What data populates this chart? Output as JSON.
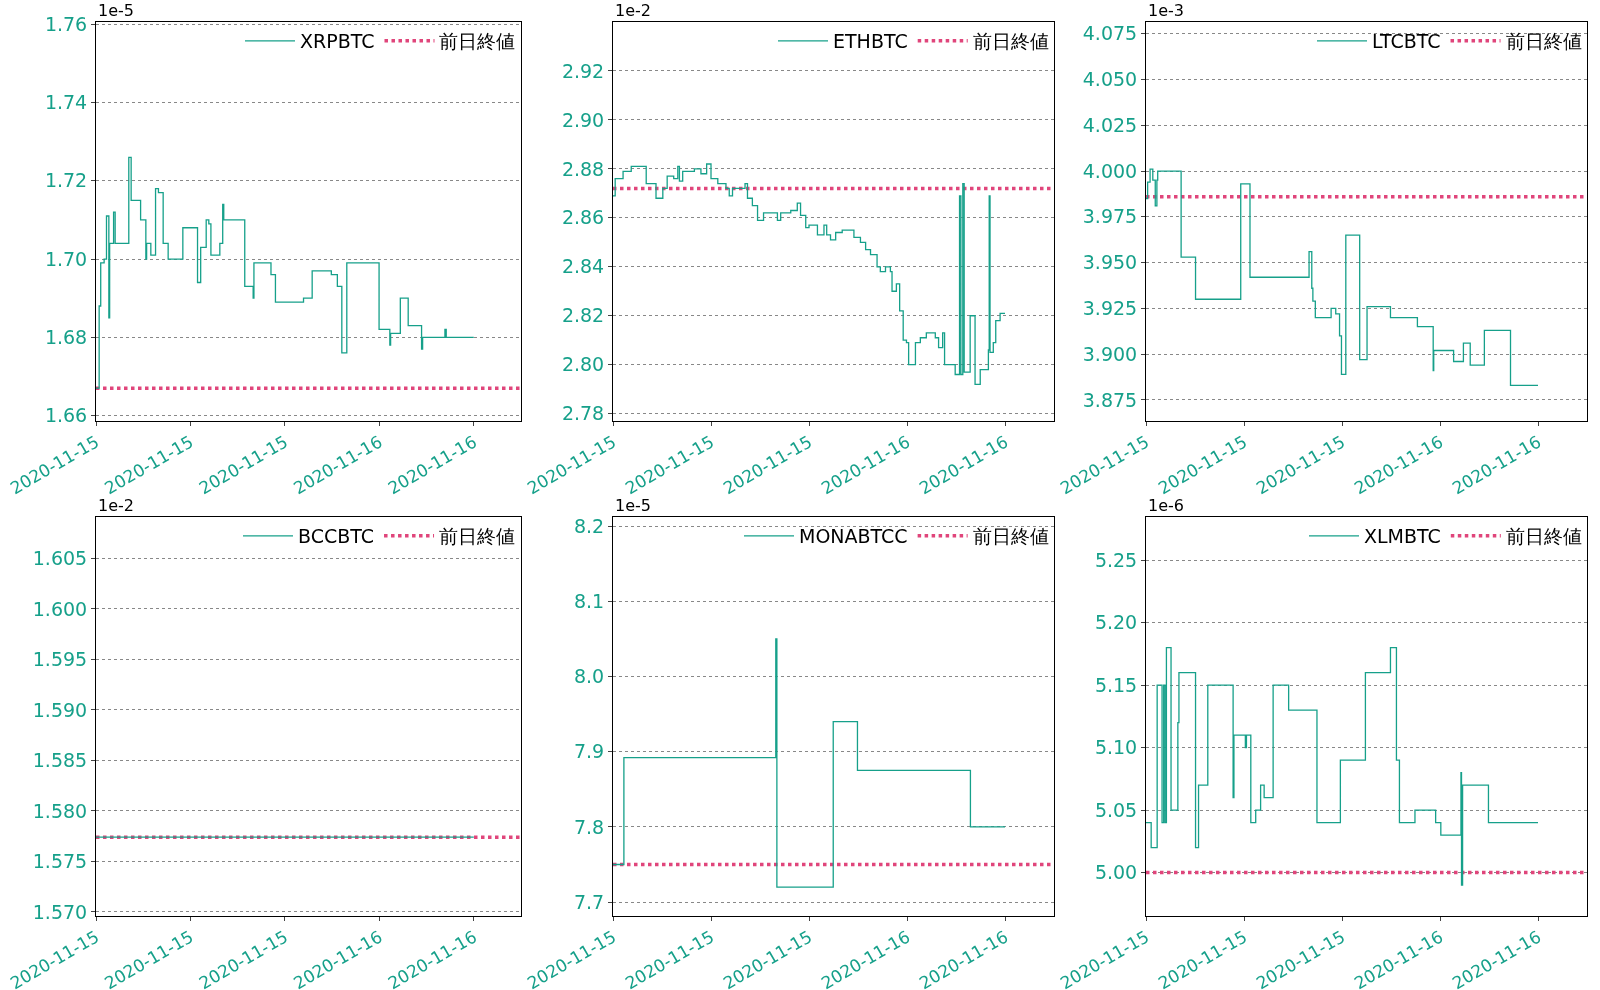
{
  "chart_data": [
    {
      "type": "step",
      "annotations": [
        "1e-5"
      ],
      "series": [
        {
          "name": "XRPBTC",
          "color": "#16a08a",
          "x": [
            "2020-11-15T06:00",
            "2020-11-15T06:12",
            "2020-11-15T06:18",
            "2020-11-15T06:31",
            "2020-11-15T06:40",
            "2020-11-15T06:49",
            "2020-11-15T06:52",
            "2020-11-15T07:07",
            "2020-11-15T07:13",
            "2020-11-15T08:05",
            "2020-11-15T08:14",
            "2020-11-15T08:26",
            "2020-11-15T08:50",
            "2020-11-15T09:10",
            "2020-11-15T09:13",
            "2020-11-15T09:29",
            "2020-11-15T09:47",
            "2020-11-15T09:58",
            "2020-11-15T10:16",
            "2020-11-15T10:35",
            "2020-11-15T11:31",
            "2020-11-15T12:27",
            "2020-11-15T12:39",
            "2020-11-15T13:00",
            "2020-11-15T13:10",
            "2020-11-15T13:18",
            "2020-11-15T13:52",
            "2020-11-15T14:03",
            "2020-11-15T14:07",
            "2020-11-15T15:27",
            "2020-11-15T15:59",
            "2020-11-15T16:02",
            "2020-11-15T17:07",
            "2020-11-15T17:24",
            "2020-11-15T19:11",
            "2020-11-15T19:44",
            "2020-11-15T20:57",
            "2020-11-15T21:20",
            "2020-11-15T21:37",
            "2020-11-15T21:56",
            "2020-11-15T23:59",
            "2020-11-16T00:40",
            "2020-11-16T00:43",
            "2020-11-16T01:20",
            "2020-11-16T01:50",
            "2020-11-16T02:41",
            "2020-11-16T02:45",
            "2020-11-16T04:10",
            "2020-11-16T04:15",
            "2020-11-16T06:00"
          ],
          "values": [
            1.667,
            1.688,
            1.699,
            1.7,
            1.711,
            1.685,
            1.704,
            1.712,
            1.704,
            1.726,
            1.715,
            1.715,
            1.71,
            1.7,
            1.704,
            1.701,
            1.718,
            1.717,
            1.704,
            1.7,
            1.708,
            1.694,
            1.703,
            1.71,
            1.709,
            1.701,
            1.704,
            1.714,
            1.71,
            1.693,
            1.69,
            1.699,
            1.696,
            1.689,
            1.69,
            1.697,
            1.696,
            1.693,
            1.676,
            1.699,
            1.682,
            1.678,
            1.681,
            1.69,
            1.683,
            1.677,
            1.68,
            1.682,
            1.68,
            1.68
          ]
        }
      ],
      "ref_lines": [
        {
          "axis": "y",
          "value": 1.667,
          "label": "前日終値",
          "color": "#e0457b",
          "line_style": "dotted"
        }
      ],
      "xlim": [
        "2020-11-15T06:00",
        "2020-11-16T09:00"
      ],
      "xticks": [
        {
          "value": "2020-11-15T06:00",
          "label": "2020-11-15"
        },
        {
          "value": "2020-11-15T12:00",
          "label": "2020-11-15"
        },
        {
          "value": "2020-11-15T18:00",
          "label": "2020-11-15"
        },
        {
          "value": "2020-11-16T00:00",
          "label": "2020-11-16"
        },
        {
          "value": "2020-11-16T06:00",
          "label": "2020-11-16"
        }
      ],
      "ylim": [
        1.6586,
        1.7606
      ],
      "yticks": [
        {
          "value": 1.66,
          "label": "1.66"
        },
        {
          "value": 1.68,
          "label": "1.68"
        },
        {
          "value": 1.7,
          "label": "1.70"
        },
        {
          "value": 1.72,
          "label": "1.72"
        },
        {
          "value": 1.74,
          "label": "1.74"
        },
        {
          "value": 1.76,
          "label": "1.76"
        }
      ],
      "grid": "y",
      "legend": "top right"
    },
    {
      "type": "step",
      "annotations": [
        "1e-2"
      ],
      "series": [
        {
          "name": "ETHBTC",
          "color": "#16a08a",
          "x": [
            "2020-11-15T06:00",
            "2020-11-15T06:08",
            "2020-11-15T06:37",
            "2020-11-15T07:07",
            "2020-11-15T08:02",
            "2020-11-15T08:38",
            "2020-11-15T09:03",
            "2020-11-15T09:19",
            "2020-11-15T09:43",
            "2020-11-15T09:58",
            "2020-11-15T10:04",
            "2020-11-15T10:16",
            "2020-11-15T10:59",
            "2020-11-15T11:23",
            "2020-11-15T11:44",
            "2020-11-15T12:00",
            "2020-11-15T12:25",
            "2020-11-15T12:55",
            "2020-11-15T13:07",
            "2020-11-15T13:19",
            "2020-11-15T14:05",
            "2020-11-15T14:14",
            "2020-11-15T14:32",
            "2020-11-15T14:51",
            "2020-11-15T15:13",
            "2020-11-15T16:04",
            "2020-11-15T16:16",
            "2020-11-15T16:53",
            "2020-11-15T17:17",
            "2020-11-15T17:29",
            "2020-11-15T17:48",
            "2020-11-15T18:00",
            "2020-11-15T18:31",
            "2020-11-15T18:55",
            "2020-11-15T19:05",
            "2020-11-15T19:19",
            "2020-11-15T19:38",
            "2020-11-15T20:02",
            "2020-11-15T20:45",
            "2020-11-15T21:09",
            "2020-11-15T21:28",
            "2020-11-15T21:46",
            "2020-11-15T22:10",
            "2020-11-15T22:22",
            "2020-11-15T22:41",
            "2020-11-15T22:59",
            "2020-11-15T23:05",
            "2020-11-15T23:21",
            "2020-11-15T23:33",
            "2020-11-15T23:46",
            "2020-11-15T23:58",
            "2020-11-16T00:06",
            "2020-11-16T00:31",
            "2020-11-16T00:49",
            "2020-11-16T01:11",
            "2020-11-16T01:44",
            "2020-11-16T01:56",
            "2020-11-16T02:11",
            "2020-11-16T02:18",
            "2020-11-16T02:57",
            "2020-11-16T03:13",
            "2020-11-16T03:18",
            "2020-11-16T03:25",
            "2020-11-16T03:30",
            "2020-11-16T03:52",
            "2020-11-16T04:10",
            "2020-11-16T04:29",
            "2020-11-16T04:59",
            "2020-11-16T05:02",
            "2020-11-16T05:05",
            "2020-11-16T05:17",
            "2020-11-16T05:26",
            "2020-11-16T05:42",
            "2020-11-16T06:00"
          ],
          "values": [
            2.869,
            2.876,
            2.879,
            2.881,
            2.874,
            2.868,
            2.872,
            2.877,
            2.876,
            2.881,
            2.875,
            2.879,
            2.88,
            2.878,
            2.882,
            2.876,
            2.874,
            2.872,
            2.869,
            2.872,
            2.874,
            2.868,
            2.865,
            2.859,
            2.862,
            2.859,
            2.862,
            2.863,
            2.866,
            2.861,
            2.856,
            2.857,
            2.853,
            2.857,
            2.853,
            2.851,
            2.854,
            2.855,
            2.852,
            2.85,
            2.847,
            2.845,
            2.84,
            2.838,
            2.84,
            2.838,
            2.83,
            2.833,
            2.822,
            2.81,
            2.809,
            2.8,
            2.809,
            2.811,
            2.813,
            2.811,
            2.807,
            2.813,
            2.8,
            2.796,
            2.869,
            2.796,
            2.874,
            2.797,
            2.82,
            2.792,
            2.798,
            2.806,
            2.869,
            2.805,
            2.809,
            2.818,
            2.821,
            2.821
          ]
        }
      ],
      "ref_lines": [
        {
          "axis": "y",
          "value": 2.872,
          "label": "前日終値",
          "color": "#e0457b",
          "line_style": "dotted"
        }
      ],
      "xlim": [
        "2020-11-15T06:00",
        "2020-11-16T09:00"
      ],
      "xticks": [
        {
          "value": "2020-11-15T06:00",
          "label": "2020-11-15"
        },
        {
          "value": "2020-11-15T12:00",
          "label": "2020-11-15"
        },
        {
          "value": "2020-11-15T18:00",
          "label": "2020-11-15"
        },
        {
          "value": "2020-11-16T00:00",
          "label": "2020-11-16"
        },
        {
          "value": "2020-11-16T06:00",
          "label": "2020-11-16"
        }
      ],
      "ylim": [
        2.777,
        2.94
      ],
      "yticks": [
        {
          "value": 2.78,
          "label": "2.78"
        },
        {
          "value": 2.8,
          "label": "2.80"
        },
        {
          "value": 2.82,
          "label": "2.82"
        },
        {
          "value": 2.84,
          "label": "2.84"
        },
        {
          "value": 2.86,
          "label": "2.86"
        },
        {
          "value": 2.88,
          "label": "2.88"
        },
        {
          "value": 2.9,
          "label": "2.90"
        },
        {
          "value": 2.92,
          "label": "2.92"
        }
      ],
      "grid": "y",
      "legend": "top right"
    },
    {
      "type": "step",
      "annotations": [
        "1e-3"
      ],
      "series": [
        {
          "name": "LTCBTC",
          "color": "#16a08a",
          "x": [
            "2020-11-15T06:00",
            "2020-11-15T06:06",
            "2020-11-15T06:15",
            "2020-11-15T06:25",
            "2020-11-15T06:34",
            "2020-11-15T06:40",
            "2020-11-15T06:43",
            "2020-11-15T08:09",
            "2020-11-15T09:02",
            "2020-11-15T11:48",
            "2020-11-15T12:22",
            "2020-11-15T15:59",
            "2020-11-15T16:09",
            "2020-11-15T16:13",
            "2020-11-15T16:22",
            "2020-11-15T17:20",
            "2020-11-15T17:37",
            "2020-11-15T17:51",
            "2020-11-15T17:58",
            "2020-11-15T18:14",
            "2020-11-15T19:05",
            "2020-11-15T19:32",
            "2020-11-15T20:58",
            "2020-11-15T22:37",
            "2020-11-15T23:35",
            "2020-11-15T23:37",
            "2020-11-16T00:50",
            "2020-11-16T01:26",
            "2020-11-16T01:51",
            "2020-11-16T02:43",
            "2020-11-16T04:19",
            "2020-11-16T06:00"
          ],
          "values": [
            3.985,
            3.994,
            4.001,
            3.995,
            3.981,
            3.995,
            4.0,
            3.953,
            3.93,
            3.993,
            3.942,
            3.956,
            3.936,
            3.929,
            3.92,
            3.925,
            3.922,
            3.91,
            3.889,
            3.965,
            3.897,
            3.926,
            3.92,
            3.915,
            3.891,
            3.902,
            3.896,
            3.906,
            3.894,
            3.913,
            3.883,
            3.883
          ]
        }
      ],
      "ref_lines": [
        {
          "axis": "y",
          "value": 3.986,
          "label": "前日終値",
          "color": "#e0457b",
          "line_style": "dotted"
        }
      ],
      "xlim": [
        "2020-11-15T06:00",
        "2020-11-16T09:00"
      ],
      "xticks": [
        {
          "value": "2020-11-15T06:00",
          "label": "2020-11-15"
        },
        {
          "value": "2020-11-15T12:00",
          "label": "2020-11-15"
        },
        {
          "value": "2020-11-15T18:00",
          "label": "2020-11-15"
        },
        {
          "value": "2020-11-16T00:00",
          "label": "2020-11-16"
        },
        {
          "value": "2020-11-16T06:00",
          "label": "2020-11-16"
        }
      ],
      "ylim": [
        3.8635,
        4.0814
      ],
      "yticks": [
        {
          "value": 3.875,
          "label": "3.875"
        },
        {
          "value": 3.9,
          "label": "3.900"
        },
        {
          "value": 3.925,
          "label": "3.925"
        },
        {
          "value": 3.95,
          "label": "3.950"
        },
        {
          "value": 3.975,
          "label": "3.975"
        },
        {
          "value": 4.0,
          "label": "4.000"
        },
        {
          "value": 4.025,
          "label": "4.025"
        },
        {
          "value": 4.05,
          "label": "4.050"
        },
        {
          "value": 4.075,
          "label": "4.075"
        }
      ],
      "grid": "y",
      "legend": "top right"
    },
    {
      "type": "step",
      "annotations": [
        "1e-2"
      ],
      "series": [
        {
          "name": "BCCBTC",
          "color": "#16a08a",
          "x": [
            "2020-11-15T06:00",
            "2020-11-16T06:00"
          ],
          "values": [
            1.5774,
            1.5774
          ]
        }
      ],
      "ref_lines": [
        {
          "axis": "y",
          "value": 1.5774,
          "label": "前日終値",
          "color": "#e0457b",
          "line_style": "dotted"
        }
      ],
      "xlim": [
        "2020-11-15T06:00",
        "2020-11-16T09:00"
      ],
      "xticks": [
        {
          "value": "2020-11-15T06:00",
          "label": "2020-11-15"
        },
        {
          "value": "2020-11-15T12:00",
          "label": "2020-11-15"
        },
        {
          "value": "2020-11-15T18:00",
          "label": "2020-11-15"
        },
        {
          "value": "2020-11-16T00:00",
          "label": "2020-11-16"
        },
        {
          "value": "2020-11-16T06:00",
          "label": "2020-11-16"
        }
      ],
      "ylim": [
        1.5696,
        1.6091
      ],
      "yticks": [
        {
          "value": 1.57,
          "label": "1.570"
        },
        {
          "value": 1.575,
          "label": "1.575"
        },
        {
          "value": 1.58,
          "label": "1.580"
        },
        {
          "value": 1.585,
          "label": "1.585"
        },
        {
          "value": 1.59,
          "label": "1.590"
        },
        {
          "value": 1.595,
          "label": "1.595"
        },
        {
          "value": 1.6,
          "label": "1.600"
        },
        {
          "value": 1.605,
          "label": "1.605"
        }
      ],
      "grid": "y",
      "legend": "top right"
    },
    {
      "type": "step",
      "annotations": [
        "1e-5"
      ],
      "series": [
        {
          "name": "MONABTCC",
          "color": "#16a08a",
          "x": [
            "2020-11-15T06:00",
            "2020-11-15T06:40",
            "2020-11-15T15:58",
            "2020-11-15T16:02",
            "2020-11-15T19:29",
            "2020-11-15T20:58",
            "2020-11-16T03:53",
            "2020-11-16T06:00"
          ],
          "values": [
            7.75,
            7.892,
            8.05,
            7.72,
            7.94,
            7.875,
            7.8,
            7.8
          ]
        }
      ],
      "ref_lines": [
        {
          "axis": "y",
          "value": 7.75,
          "label": "前日終値",
          "color": "#e0457b",
          "line_style": "dotted"
        }
      ],
      "xlim": [
        "2020-11-15T06:00",
        "2020-11-16T09:00"
      ],
      "xticks": [
        {
          "value": "2020-11-15T06:00",
          "label": "2020-11-15"
        },
        {
          "value": "2020-11-15T12:00",
          "label": "2020-11-15"
        },
        {
          "value": "2020-11-15T18:00",
          "label": "2020-11-15"
        },
        {
          "value": "2020-11-16T00:00",
          "label": "2020-11-16"
        },
        {
          "value": "2020-11-16T06:00",
          "label": "2020-11-16"
        }
      ],
      "ylim": [
        7.6815,
        8.212
      ],
      "yticks": [
        {
          "value": 7.7,
          "label": "7.7"
        },
        {
          "value": 7.8,
          "label": "7.8"
        },
        {
          "value": 7.9,
          "label": "7.9"
        },
        {
          "value": 8.0,
          "label": "8.0"
        },
        {
          "value": 8.1,
          "label": "8.1"
        },
        {
          "value": 8.2,
          "label": "8.2"
        }
      ],
      "grid": "y",
      "legend": "top right"
    },
    {
      "type": "step",
      "annotations": [
        "1e-6"
      ],
      "series": [
        {
          "name": "XLMBTC",
          "color": "#16a08a",
          "x": [
            "2020-11-15T06:00",
            "2020-11-15T06:19",
            "2020-11-15T06:41",
            "2020-11-15T06:59",
            "2020-11-15T07:05",
            "2020-11-15T07:10",
            "2020-11-15T07:15",
            "2020-11-15T07:32",
            "2020-11-15T07:57",
            "2020-11-15T08:01",
            "2020-11-15T09:02",
            "2020-11-15T09:13",
            "2020-11-15T09:47",
            "2020-11-15T11:20",
            "2020-11-15T11:23",
            "2020-11-15T12:05",
            "2020-11-15T12:09",
            "2020-11-15T12:25",
            "2020-11-15T12:43",
            "2020-11-15T13:01",
            "2020-11-15T13:14",
            "2020-11-15T13:47",
            "2020-11-15T14:44",
            "2020-11-15T16:28",
            "2020-11-15T17:54",
            "2020-11-15T19:26",
            "2020-11-15T20:58",
            "2020-11-15T21:20",
            "2020-11-15T21:31",
            "2020-11-15T22:28",
            "2020-11-15T23:44",
            "2020-11-16T00:03",
            "2020-11-16T01:17",
            "2020-11-16T01:19",
            "2020-11-16T01:23",
            "2020-11-16T02:58",
            "2020-11-16T06:00"
          ],
          "values": [
            5.04,
            5.02,
            5.15,
            5.04,
            5.15,
            5.04,
            5.18,
            5.05,
            5.12,
            5.16,
            5.02,
            5.07,
            5.15,
            5.06,
            5.11,
            5.1,
            5.11,
            5.04,
            5.05,
            5.07,
            5.06,
            5.15,
            5.13,
            5.04,
            5.09,
            5.16,
            5.18,
            5.09,
            5.04,
            5.05,
            5.04,
            5.03,
            5.08,
            4.99,
            5.07,
            5.04,
            5.04
          ]
        }
      ],
      "ref_lines": [
        {
          "axis": "y",
          "value": 5.0,
          "label": "前日終値",
          "color": "#e0457b",
          "line_style": "dotted"
        }
      ],
      "xlim": [
        "2020-11-15T06:00",
        "2020-11-16T09:00"
      ],
      "xticks": [
        {
          "value": "2020-11-15T06:00",
          "label": "2020-11-15"
        },
        {
          "value": "2020-11-15T12:00",
          "label": "2020-11-15"
        },
        {
          "value": "2020-11-15T18:00",
          "label": "2020-11-15"
        },
        {
          "value": "2020-11-16T00:00",
          "label": "2020-11-16"
        },
        {
          "value": "2020-11-16T06:00",
          "label": "2020-11-16"
        }
      ],
      "ylim": [
        4.9652,
        5.2846
      ],
      "yticks": [
        {
          "value": 5.0,
          "label": "5.00"
        },
        {
          "value": 5.05,
          "label": "5.05"
        },
        {
          "value": 5.1,
          "label": "5.10"
        },
        {
          "value": 5.15,
          "label": "5.15"
        },
        {
          "value": 5.2,
          "label": "5.20"
        },
        {
          "value": 5.25,
          "label": "5.25"
        }
      ],
      "grid": "y",
      "legend": "top right"
    }
  ]
}
